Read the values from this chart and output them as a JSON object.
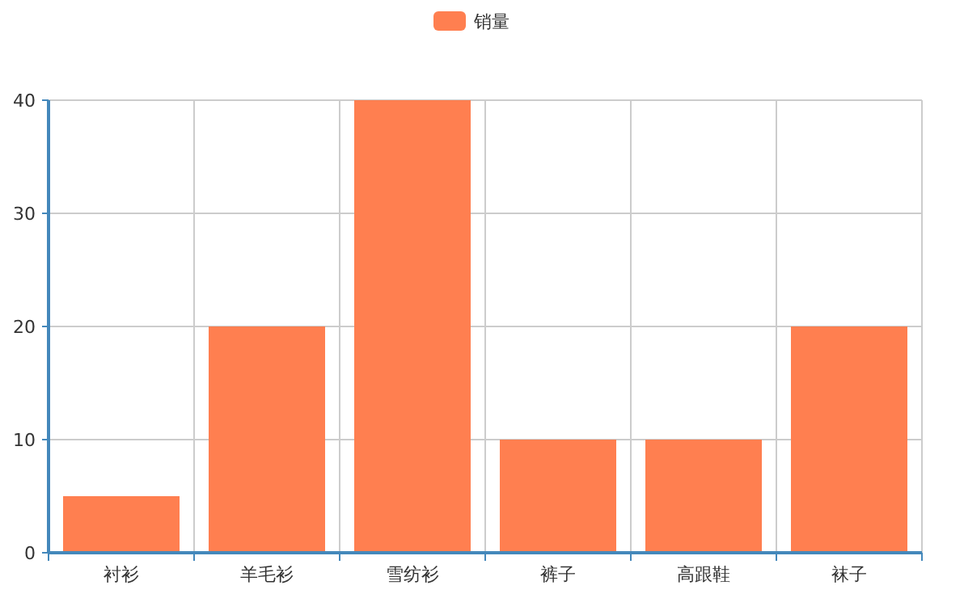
{
  "chart_data": {
    "type": "bar",
    "categories": [
      "衬衫",
      "羊毛衫",
      "雪纺衫",
      "裤子",
      "高跟鞋",
      "袜子"
    ],
    "series": [
      {
        "name": "销量",
        "color": "#ff7f50",
        "values": [
          5,
          20,
          40,
          10,
          10,
          20
        ]
      }
    ],
    "ylim": [
      0,
      40
    ],
    "yticks": [
      0,
      10,
      20,
      30,
      40
    ],
    "grid": true,
    "legend": "top"
  }
}
